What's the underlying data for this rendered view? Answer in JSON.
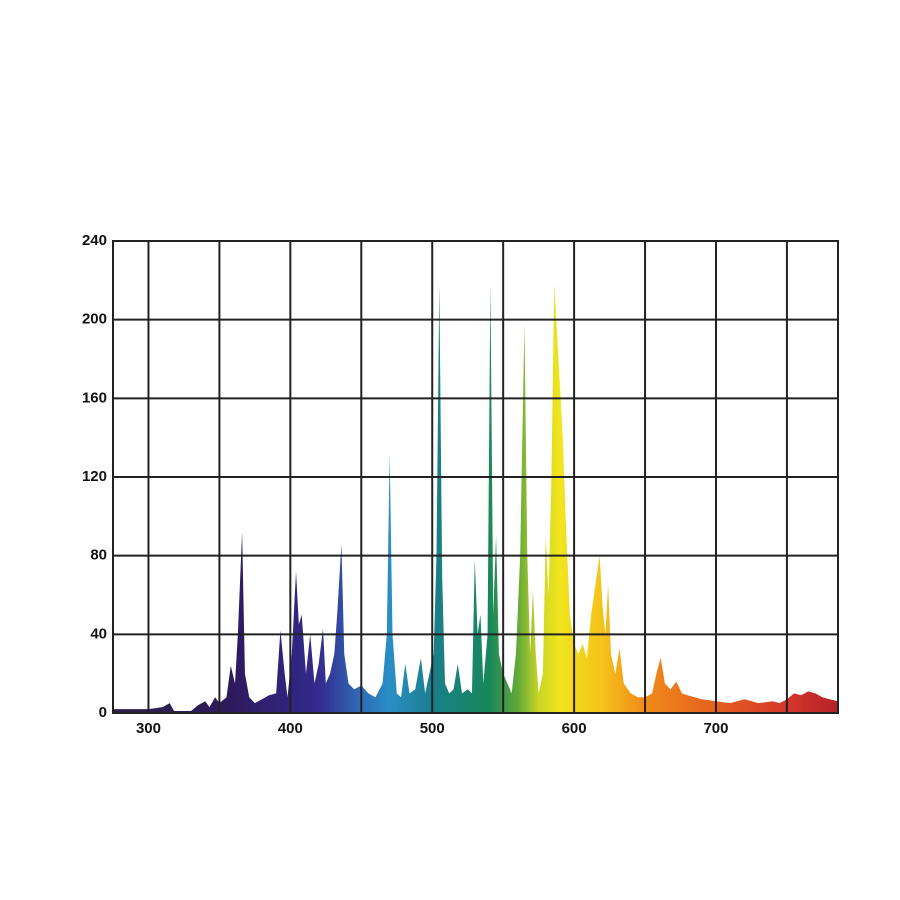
{
  "chart_data": {
    "type": "area",
    "x": [
      275,
      300,
      310,
      315,
      318,
      330,
      335,
      340,
      343,
      347,
      350,
      355,
      358,
      361,
      363,
      366,
      368,
      371,
      375,
      380,
      385,
      390,
      393,
      396,
      398,
      401,
      404,
      406,
      408,
      411,
      414,
      417,
      420,
      423,
      425,
      428,
      431,
      433,
      436,
      438,
      441,
      445,
      450,
      455,
      460,
      465,
      468,
      470,
      472,
      475,
      478,
      481,
      484,
      488,
      492,
      495,
      498,
      501,
      503,
      505,
      507,
      509,
      512,
      515,
      518,
      521,
      525,
      528,
      530,
      532,
      534,
      536,
      539,
      541,
      543,
      545,
      547,
      550,
      553,
      556,
      559,
      562,
      565,
      567,
      569,
      571,
      573,
      575,
      578,
      580,
      582,
      584,
      586,
      589,
      592,
      594,
      597,
      600,
      603,
      606,
      609,
      612,
      615,
      618,
      620,
      622,
      624,
      626,
      629,
      632,
      635,
      640,
      645,
      650,
      655,
      658,
      661,
      664,
      668,
      672,
      676,
      680,
      690,
      700,
      710,
      720,
      730,
      740,
      745,
      750,
      755,
      760,
      765,
      770,
      775,
      780,
      786
    ],
    "values": [
      2,
      2,
      3,
      5,
      1,
      1,
      4,
      6,
      3,
      8,
      5,
      8,
      24,
      15,
      40,
      92,
      20,
      8,
      5,
      7,
      9,
      10,
      42,
      20,
      8,
      30,
      72,
      45,
      50,
      20,
      40,
      15,
      25,
      43,
      15,
      20,
      30,
      50,
      86,
      30,
      15,
      12,
      14,
      10,
      8,
      15,
      40,
      132,
      40,
      10,
      8,
      25,
      10,
      12,
      28,
      10,
      20,
      30,
      80,
      218,
      70,
      15,
      10,
      12,
      25,
      10,
      12,
      10,
      78,
      40,
      50,
      15,
      40,
      218,
      50,
      90,
      30,
      20,
      15,
      10,
      30,
      80,
      198,
      80,
      30,
      62,
      30,
      10,
      20,
      90,
      60,
      120,
      218,
      180,
      140,
      100,
      50,
      35,
      30,
      35,
      28,
      50,
      65,
      80,
      55,
      40,
      65,
      30,
      20,
      33,
      15,
      10,
      8,
      8,
      10,
      20,
      28,
      15,
      12,
      16,
      10,
      9,
      7,
      6,
      5,
      7,
      5,
      6,
      5,
      7,
      10,
      9,
      11,
      10,
      8,
      7,
      6
    ],
    "xlim": [
      275,
      786
    ],
    "ylim": [
      0,
      240
    ],
    "xticks": [
      300,
      400,
      500,
      600,
      700
    ],
    "x_minor_grid": [
      350,
      450,
      550,
      650,
      750
    ],
    "yticks": [
      0,
      40,
      80,
      120,
      160,
      200,
      240
    ],
    "grid": true,
    "color_stops": [
      {
        "x": 275,
        "color": "#2b2048"
      },
      {
        "x": 360,
        "color": "#2d1a5e"
      },
      {
        "x": 420,
        "color": "#34298e"
      },
      {
        "x": 450,
        "color": "#2f6db8"
      },
      {
        "x": 470,
        "color": "#2a8ec6"
      },
      {
        "x": 500,
        "color": "#1a7f8c"
      },
      {
        "x": 540,
        "color": "#17875a"
      },
      {
        "x": 560,
        "color": "#5fa83a"
      },
      {
        "x": 575,
        "color": "#c8d525"
      },
      {
        "x": 590,
        "color": "#f2e51e"
      },
      {
        "x": 620,
        "color": "#f4c21a"
      },
      {
        "x": 650,
        "color": "#f08a1a"
      },
      {
        "x": 700,
        "color": "#e6601f"
      },
      {
        "x": 750,
        "color": "#d4372a"
      },
      {
        "x": 786,
        "color": "#b5202a"
      }
    ]
  }
}
